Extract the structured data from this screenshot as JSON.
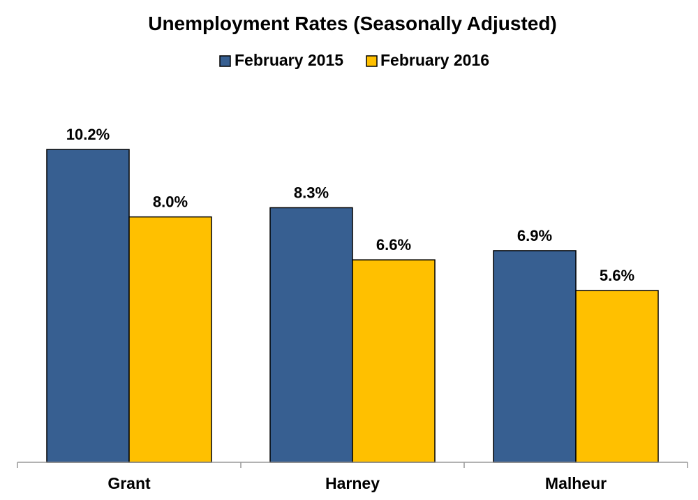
{
  "chart_data": {
    "type": "bar",
    "title": "Unemployment Rates (Seasonally Adjusted)",
    "xlabel": "",
    "ylabel": "",
    "categories": [
      "Grant",
      "Harney",
      "Malheur"
    ],
    "series": [
      {
        "name": "February 2015",
        "values": [
          10.2,
          8.3,
          6.9
        ],
        "labels": [
          "10.2%",
          "8.3%",
          "6.9%"
        ],
        "color": "#375F91"
      },
      {
        "name": "February 2016",
        "values": [
          8.0,
          6.6,
          5.6
        ],
        "labels": [
          "8.0%",
          "6.6%",
          "5.6%"
        ],
        "color": "#FFC000"
      }
    ],
    "ylim": [
      0,
      10.2
    ],
    "grid": false,
    "legend_position": "top"
  }
}
